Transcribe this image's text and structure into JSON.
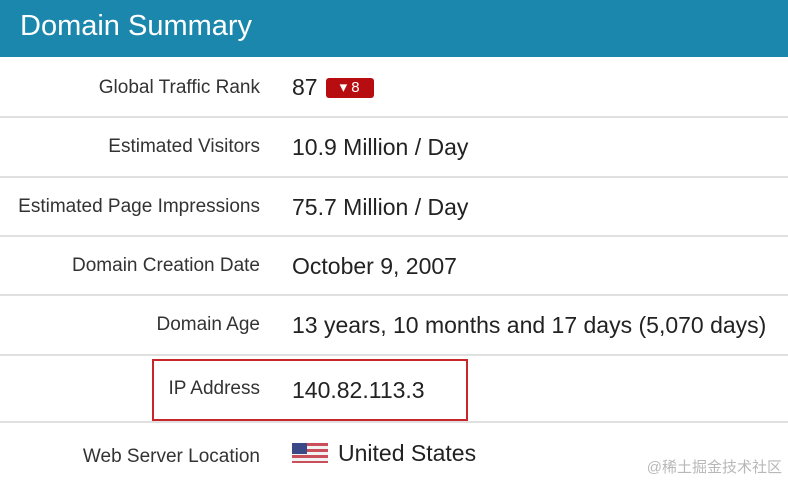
{
  "header": {
    "title": "Domain Summary"
  },
  "rows": [
    {
      "label": "Global Traffic Rank",
      "value": "87",
      "badge": "▾ 8"
    },
    {
      "label": "Estimated Visitors",
      "value": "10.9 Million / Day"
    },
    {
      "label": "Estimated Page Impressions",
      "value": "75.7 Million / Day"
    },
    {
      "label": "Domain Creation Date",
      "value": "October 9, 2007"
    },
    {
      "label": "Domain Age",
      "value": "13 years, 10 months and 17 days (5,070 days)"
    },
    {
      "label": "IP Address",
      "value": "140.82.113.3"
    },
    {
      "label": "Web Server Location",
      "value": "United States",
      "icon": "us-flag-icon"
    }
  ],
  "colors": {
    "header": "#1b87ad",
    "badge": "#b80d10",
    "highlight": "#c8262b"
  },
  "watermark": "@稀土掘金技术社区"
}
